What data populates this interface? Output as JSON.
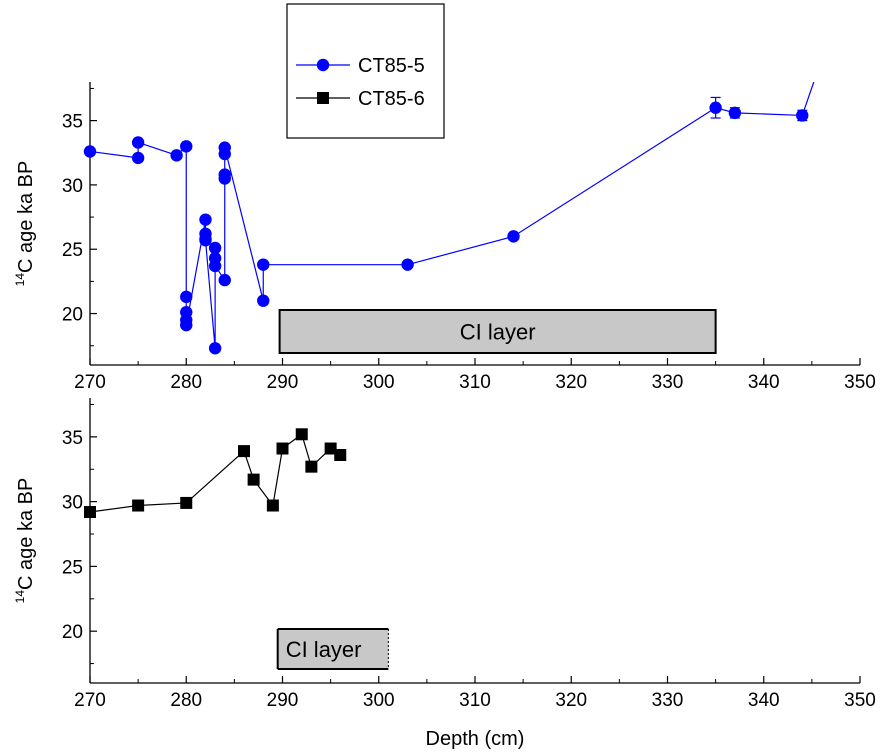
{
  "chart_data": [
    {
      "type": "line",
      "panel": "top",
      "ylabel_sup": "14",
      "ylabel": "C age ka BP",
      "xlim": [
        270,
        350
      ],
      "ylim": [
        16,
        38
      ],
      "x_ticks": [
        "270",
        "280",
        "290",
        "300",
        "310",
        "320",
        "330",
        "340",
        "350"
      ],
      "y_ticks": [
        "20",
        "25",
        "30",
        "35"
      ],
      "legend": {
        "placement": "top-center",
        "entries": [
          "CT85-5",
          "CT85-6"
        ]
      },
      "annotation": {
        "text": "CI layer",
        "x_range": [
          289.7,
          335
        ]
      },
      "series": [
        {
          "name": "CT85-5",
          "color": "#0000ff",
          "marker": "circle",
          "points": [
            [
              270,
              32.6
            ],
            [
              275,
              32.1
            ],
            [
              275,
              33.3
            ],
            [
              279,
              32.3
            ],
            [
              280,
              33.0
            ],
            [
              280,
              21.3
            ],
            [
              280,
              20.1
            ],
            [
              280,
              19.5
            ],
            [
              280,
              19.1
            ],
            [
              282,
              27.3
            ],
            [
              282,
              26.2
            ],
            [
              282,
              25.8
            ],
            [
              282,
              25.7
            ],
            [
              283,
              17.3
            ],
            [
              283,
              25.1
            ],
            [
              283,
              24.3
            ],
            [
              283,
              23.7
            ],
            [
              284,
              22.6
            ],
            [
              284,
              30.5
            ],
            [
              284,
              30.8
            ],
            [
              284,
              32.4
            ],
            [
              284,
              32.9
            ],
            [
              288,
              21.0
            ],
            [
              288,
              23.8
            ],
            [
              303,
              23.8
            ],
            [
              314,
              26.0
            ],
            [
              335,
              36.0
            ],
            [
              337,
              35.6
            ],
            [
              344,
              35.4
            ],
            [
              345.2,
              38.0
            ]
          ],
          "error_bars": [
            {
              "x": 335,
              "y": 36.0,
              "err": 0.8
            },
            {
              "x": 337,
              "y": 35.6,
              "err": 0.4
            },
            {
              "x": 344,
              "y": 35.4,
              "err": 0.4
            }
          ]
        }
      ]
    },
    {
      "type": "line",
      "panel": "bottom",
      "xlabel": "Depth (cm)",
      "ylabel_sup": "14",
      "ylabel": "C age ka BP",
      "xlim": [
        270,
        350
      ],
      "ylim": [
        16,
        38
      ],
      "x_ticks": [
        "270",
        "280",
        "290",
        "300",
        "310",
        "320",
        "330",
        "340",
        "350"
      ],
      "y_ticks": [
        "20",
        "25",
        "30",
        "35"
      ],
      "annotation": {
        "text": "CI layer",
        "x_range": [
          289.5,
          301
        ]
      },
      "series": [
        {
          "name": "CT85-6",
          "color": "#000000",
          "marker": "square",
          "points": [
            [
              270,
              29.2
            ],
            [
              275,
              29.7
            ],
            [
              280,
              29.9
            ],
            [
              286,
              33.9
            ],
            [
              287,
              31.7
            ],
            [
              289,
              29.7
            ],
            [
              290,
              34.1
            ],
            [
              292,
              35.2
            ],
            [
              293,
              32.7
            ],
            [
              295,
              34.1
            ],
            [
              296,
              33.6
            ]
          ]
        }
      ]
    }
  ]
}
